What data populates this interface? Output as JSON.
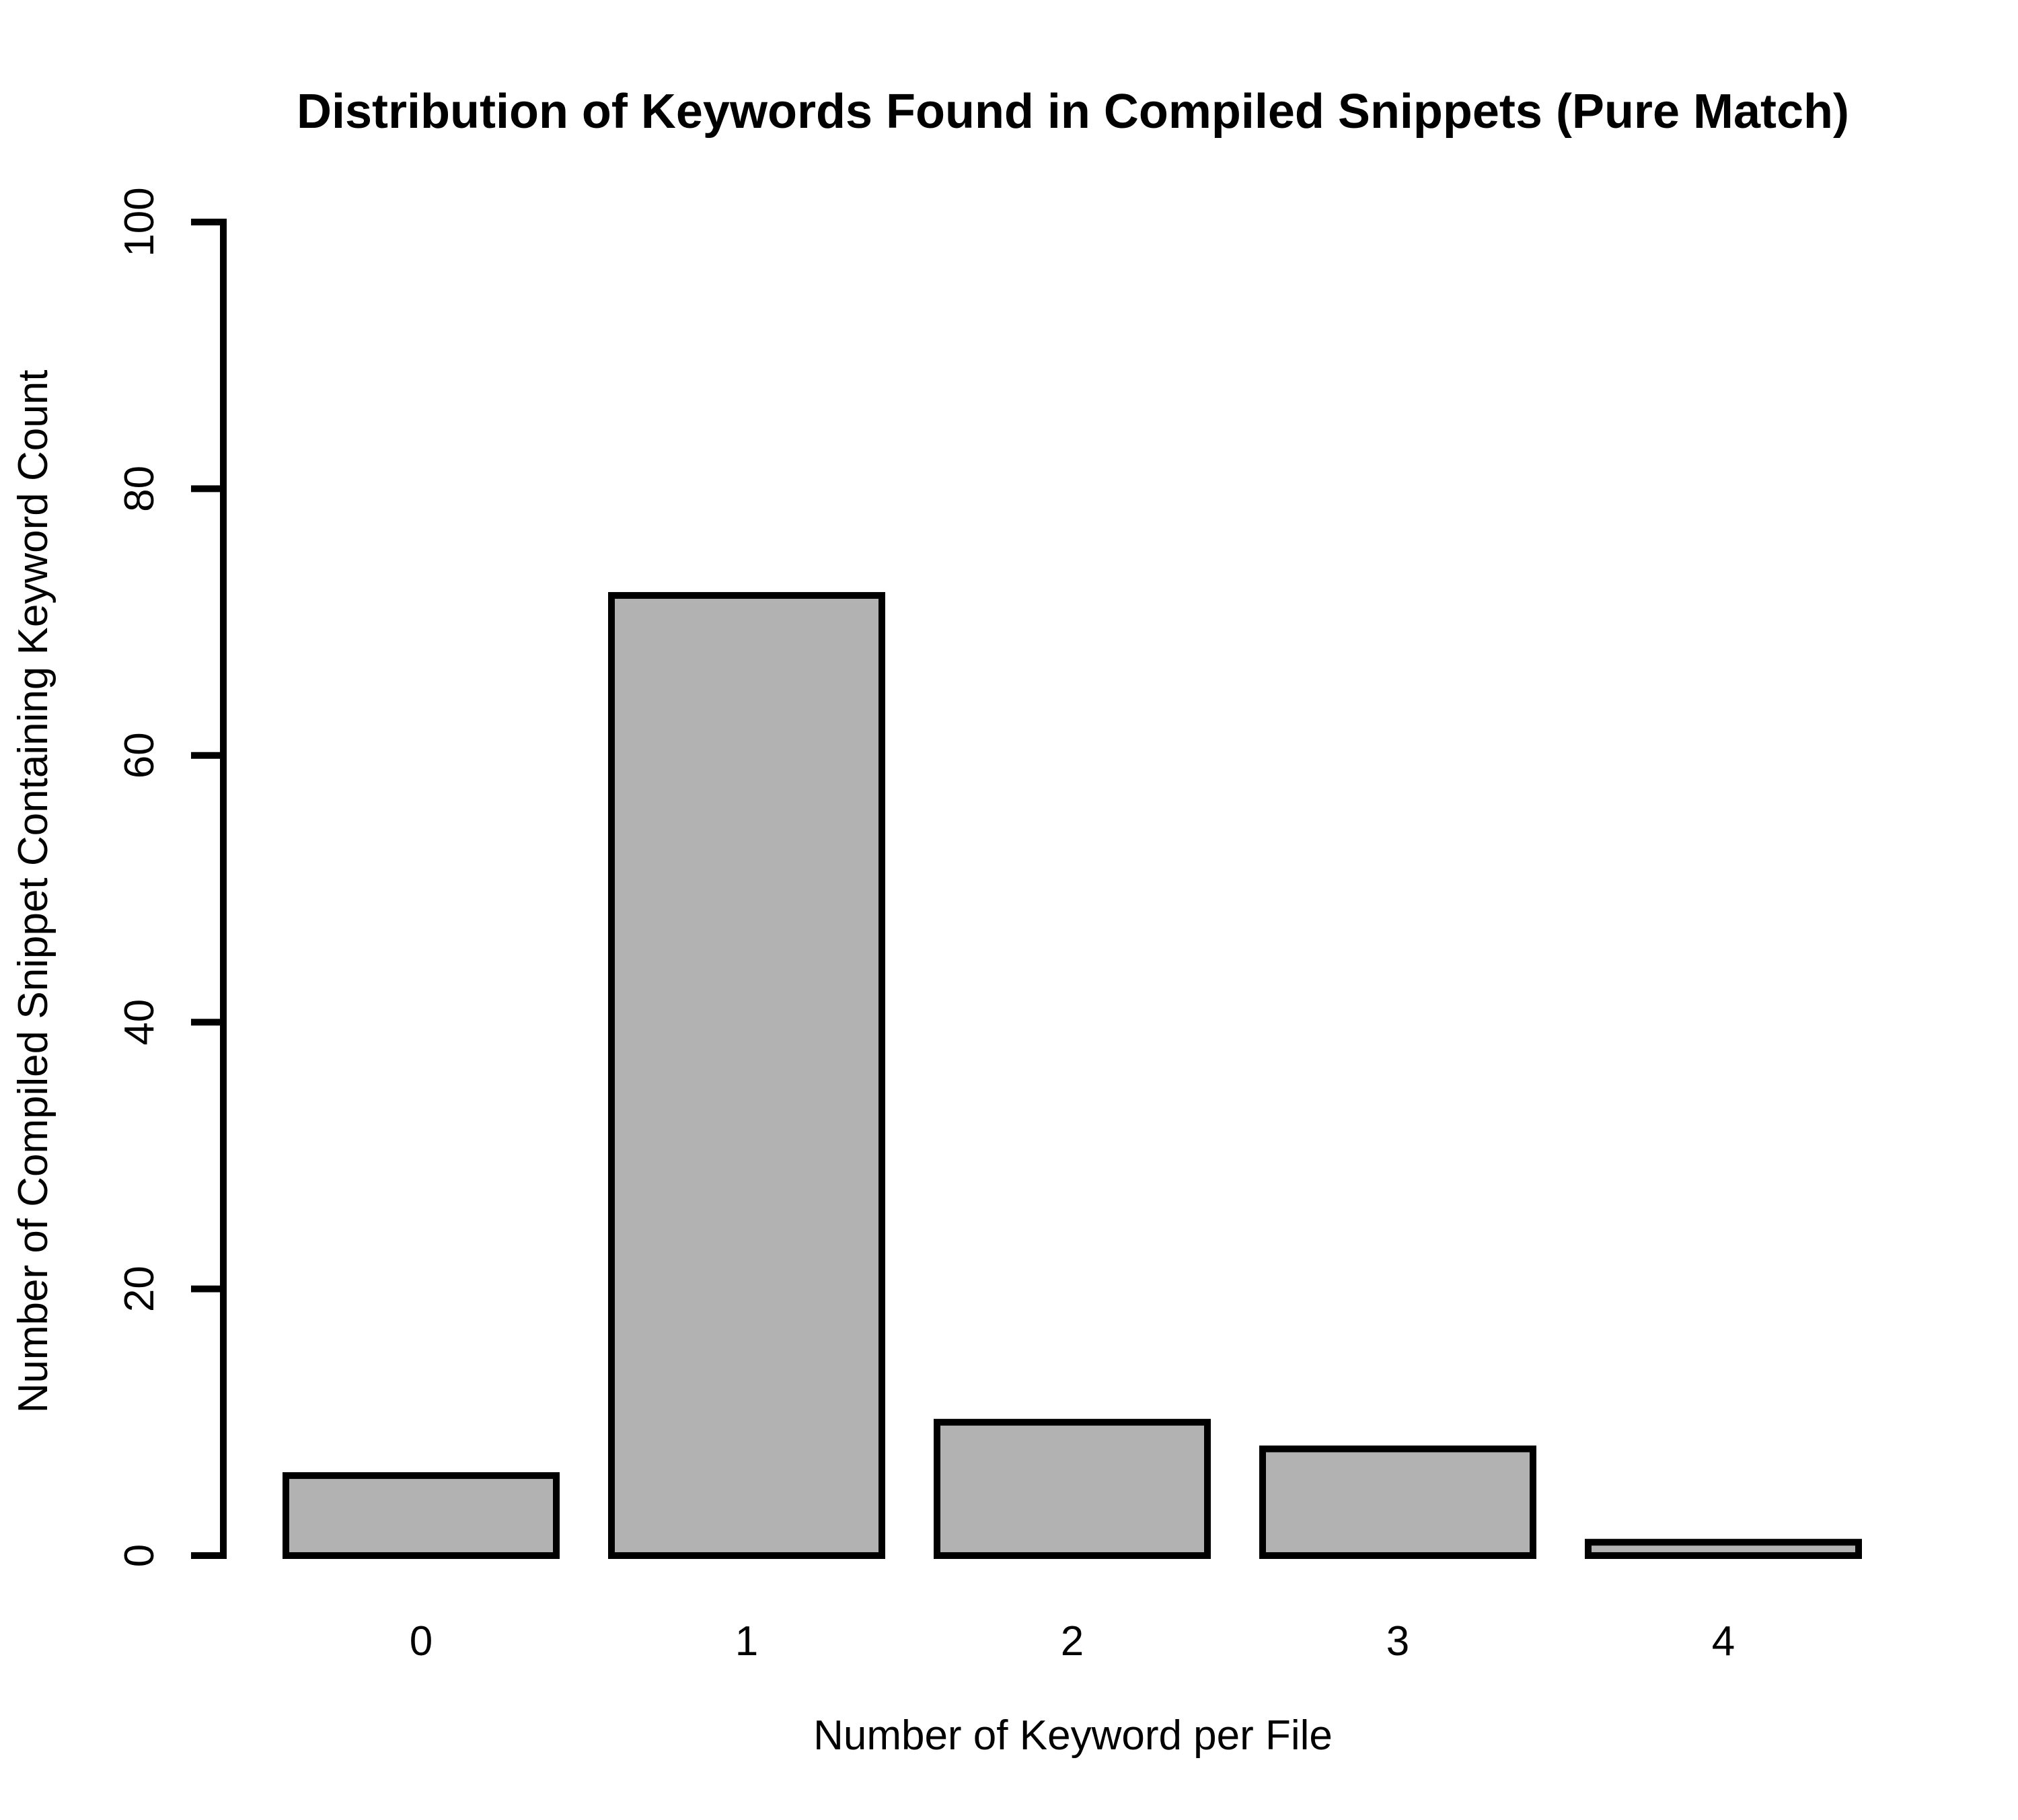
{
  "chart_data": {
    "type": "bar",
    "title": "Distribution of Keywords Found in Compiled Snippets (Pure Match)",
    "xlabel": "Number of Keyword per File",
    "ylabel": "Number of Compiled Snippet Containing Keyword Count",
    "categories": [
      "0",
      "1",
      "2",
      "3",
      "4"
    ],
    "values": [
      6,
      72,
      10,
      8,
      1
    ],
    "ylim": [
      0,
      100
    ],
    "yticks": [
      0,
      20,
      40,
      60,
      80,
      100
    ],
    "grid": false,
    "legend": "none",
    "bar_color": "#b2b2b2",
    "edge_color": "#000000"
  }
}
